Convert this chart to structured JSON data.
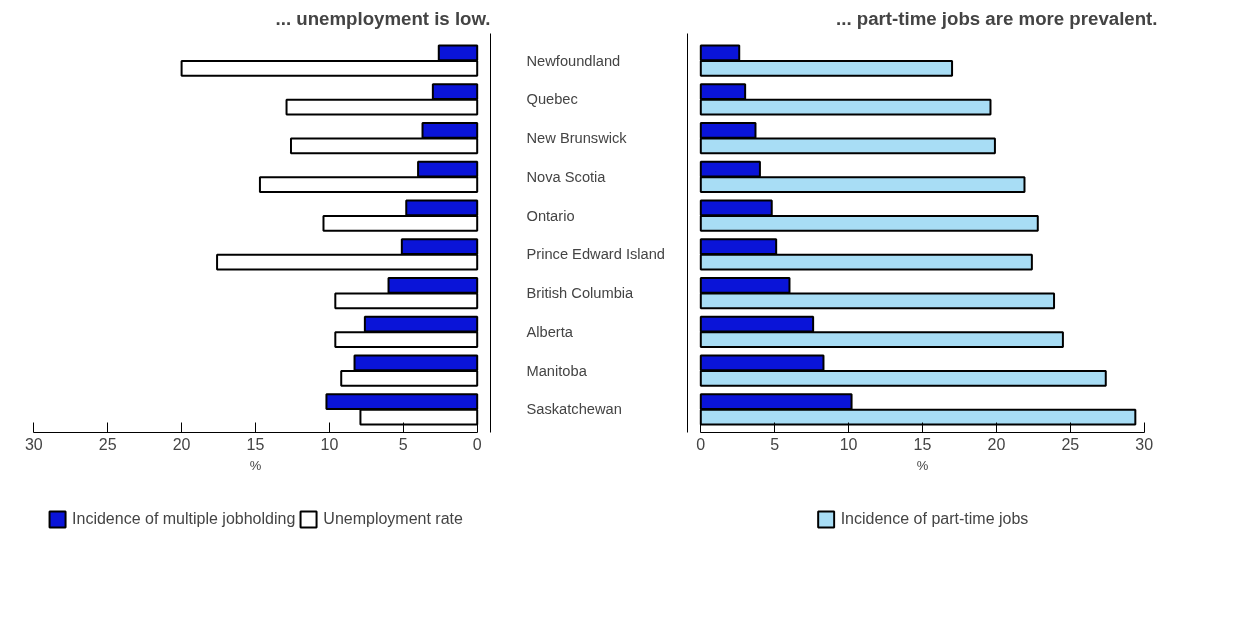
{
  "chart_data": [
    {
      "type": "bar",
      "orientation": "horizontal",
      "title": "... unemployment is low.",
      "xlabel": "%",
      "categories": [
        "Newfoundland",
        "Quebec",
        "New Brunswick",
        "Nova Scotia",
        "Ontario",
        "Prince Edward Island",
        "British Columbia",
        "Alberta",
        "Manitoba",
        "Saskatchewan"
      ],
      "series": [
        {
          "name": "Incidence of multiple jobholding",
          "color": "#0a14d8",
          "values": [
            2.6,
            3.0,
            3.7,
            4.0,
            4.8,
            5.1,
            6.0,
            7.6,
            8.3,
            10.2
          ]
        },
        {
          "name": "Unemployment rate",
          "color": "#ffffff",
          "values": [
            20.0,
            12.9,
            12.6,
            14.7,
            10.4,
            17.6,
            9.6,
            9.6,
            9.2,
            7.9
          ]
        }
      ],
      "xlim": [
        30,
        0
      ],
      "xticks": [
        30,
        25,
        20,
        15,
        10,
        5,
        0
      ],
      "grid": false,
      "legend": "bottom"
    },
    {
      "type": "bar",
      "orientation": "horizontal",
      "title": "... part-time jobs are more prevalent.",
      "xlabel": "%",
      "categories": [
        null,
        null,
        null,
        null,
        null,
        null,
        null,
        null,
        null,
        null
      ],
      "series": [
        {
          "color": "#0a14d8",
          "values": [
            2.6,
            3.0,
            3.7,
            4.0,
            4.8,
            5.1,
            6.0,
            7.6,
            8.3,
            10.2
          ]
        },
        {
          "name": "Incidence of part-time jobs",
          "color": "#a8ddf5",
          "values": [
            17.0,
            19.6,
            19.9,
            21.9,
            22.8,
            22.4,
            23.9,
            24.5,
            27.4,
            29.4
          ]
        }
      ],
      "xlim": [
        0,
        30
      ],
      "xticks": [
        0,
        5,
        10,
        15,
        20,
        25,
        30
      ],
      "tick_labels": "x",
      "grid": false,
      "legend": "bottom"
    }
  ]
}
